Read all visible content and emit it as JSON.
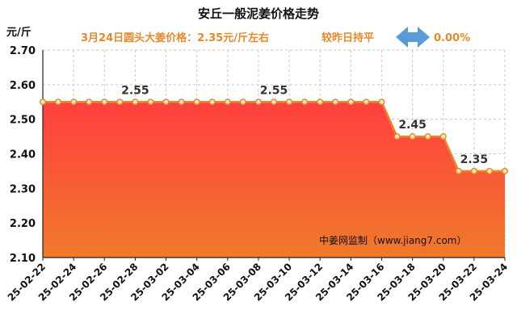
{
  "header": {
    "title": "安丘一般泥姜价格走势",
    "subtitle_price": "3月24日圆头大姜价格：2.35元/斤左右",
    "subtitle_change": "较昨日持平",
    "change_pct": "0.00%",
    "change_arrow_icon": "left-right-arrow-icon"
  },
  "watermark": "中姜网监制（www.jiang7.com）",
  "colors": {
    "line": "#E8892B",
    "marker_fill": "#FFE9B8",
    "area_top": "#FF3F3F",
    "area_bottom": "#F07A2A",
    "subtitle": "#E8892B",
    "arrow": "#5B9BD5"
  },
  "chart_data": {
    "type": "area",
    "title": "安丘一般泥姜价格走势",
    "ylabel": "元/斤",
    "xlabel": "",
    "ylim": [
      2.1,
      2.7
    ],
    "yticks": [
      "2.10",
      "2.20",
      "2.30",
      "2.40",
      "2.50",
      "2.60",
      "2.70"
    ],
    "grid": true,
    "x": [
      "25-02-22",
      "25-02-23",
      "25-02-24",
      "25-02-25",
      "25-02-26",
      "25-02-27",
      "25-02-28",
      "25-03-01",
      "25-03-02",
      "25-03-03",
      "25-03-04",
      "25-03-05",
      "25-03-06",
      "25-03-07",
      "25-03-08",
      "25-03-09",
      "25-03-10",
      "25-03-11",
      "25-03-12",
      "25-03-13",
      "25-03-14",
      "25-03-15",
      "25-03-16",
      "25-03-17",
      "25-03-18",
      "25-03-19",
      "25-03-20",
      "25-03-21",
      "25-03-22",
      "25-03-23",
      "25-03-24"
    ],
    "xtick_labels": [
      "25-02-22",
      "25-02-24",
      "25-02-26",
      "25-02-28",
      "25-03-02",
      "25-03-04",
      "25-03-06",
      "25-03-08",
      "25-03-10",
      "25-03-12",
      "25-03-14",
      "25-03-16",
      "25-03-18",
      "25-03-20",
      "25-03-22",
      "25-03-24"
    ],
    "series": [
      {
        "values": [
          2.55,
          2.55,
          2.55,
          2.55,
          2.55,
          2.55,
          2.55,
          2.55,
          2.55,
          2.55,
          2.55,
          2.55,
          2.55,
          2.55,
          2.55,
          2.55,
          2.55,
          2.55,
          2.55,
          2.55,
          2.55,
          2.55,
          2.55,
          2.45,
          2.45,
          2.45,
          2.45,
          2.35,
          2.35,
          2.35,
          2.35
        ]
      }
    ],
    "data_labels": [
      {
        "x": "25-02-28",
        "text": "2.55"
      },
      {
        "x": "25-03-09",
        "text": "2.55"
      },
      {
        "x": "25-03-18",
        "text": "2.45"
      },
      {
        "x": "25-03-22",
        "text": "2.35"
      }
    ]
  }
}
